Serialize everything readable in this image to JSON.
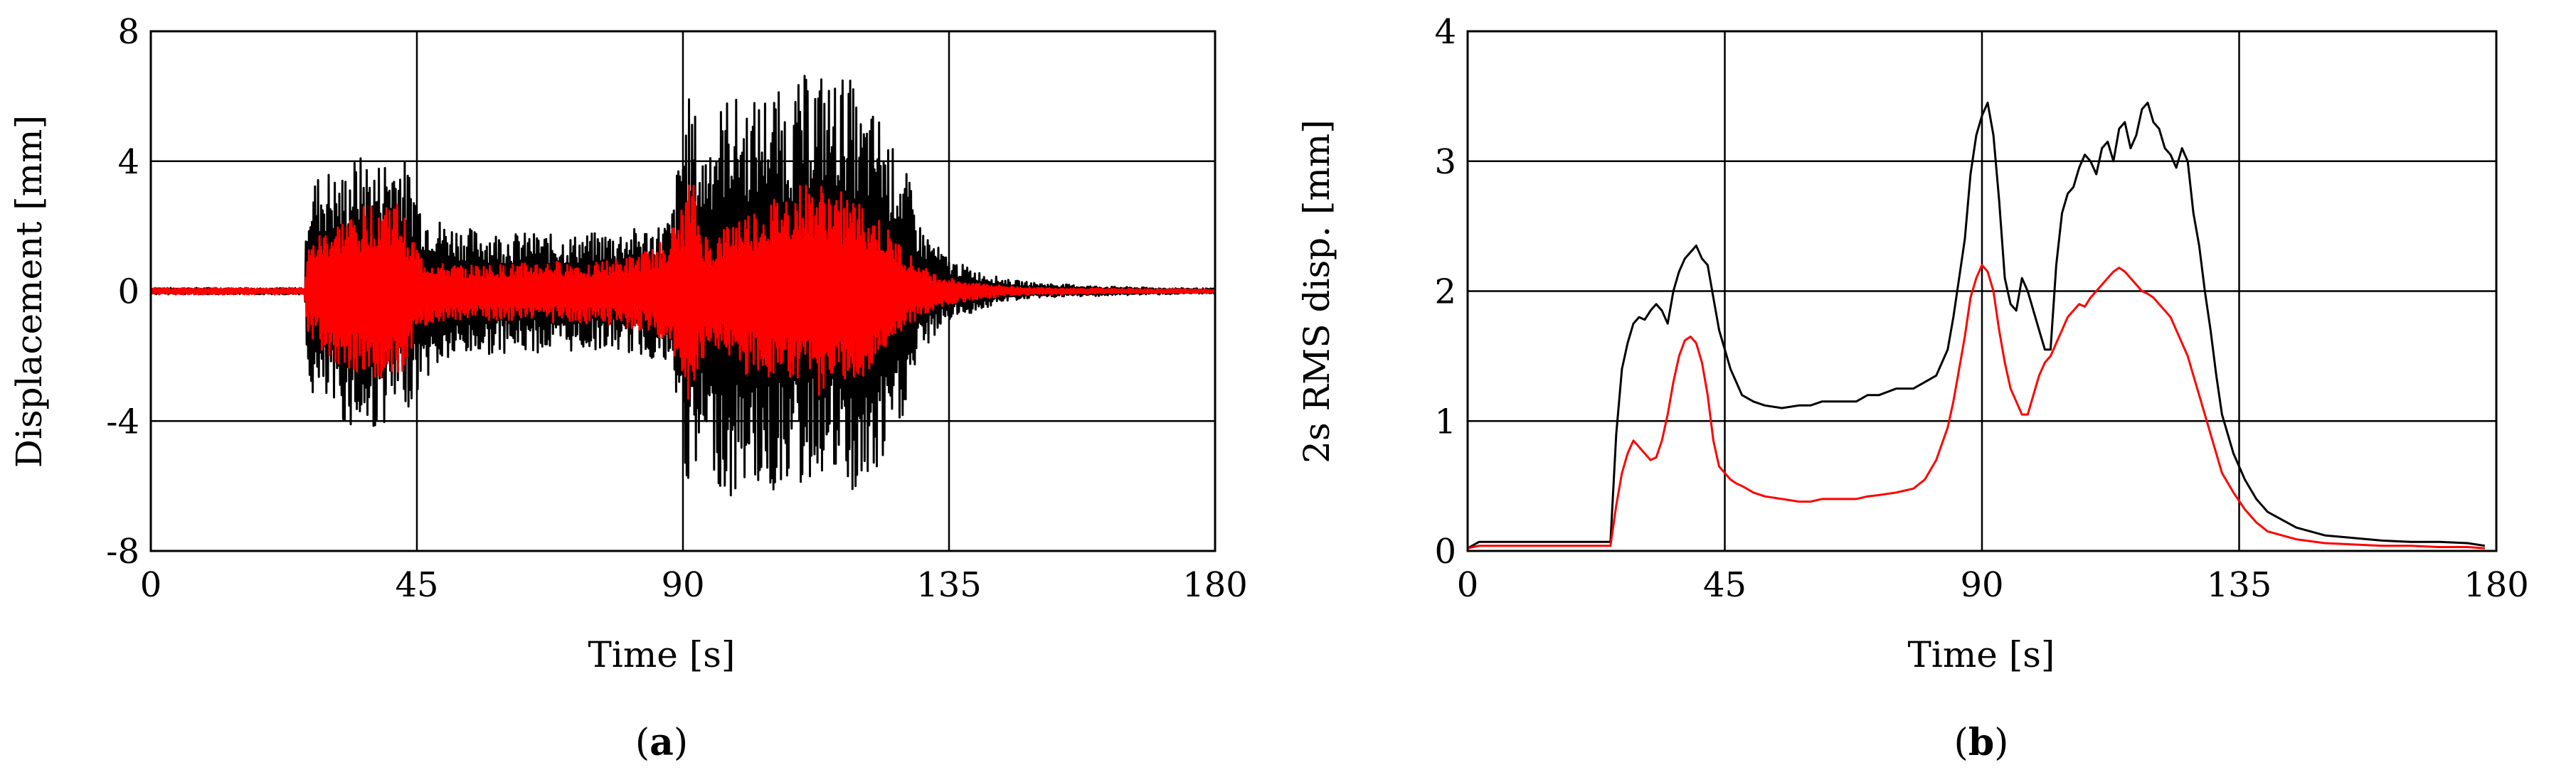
{
  "chart_data": [
    {
      "type": "line",
      "panel_caption": "(a)",
      "panel_letter": "a",
      "xlabel": "Time [s]",
      "ylabel": "Displacement [mm]",
      "xlim": [
        0,
        180
      ],
      "ylim": [
        -8,
        8
      ],
      "x_ticks": [
        0,
        45,
        90,
        135,
        180
      ],
      "y_ticks": [
        -8,
        -4,
        0,
        4,
        8
      ],
      "grid": true,
      "series": [
        {
          "color": "#000000",
          "x": [
            0,
            26,
            26.5,
            28,
            30,
            32,
            34,
            36,
            38,
            40,
            42,
            44,
            46,
            50,
            55,
            60,
            65,
            70,
            75,
            80,
            85,
            88,
            90,
            91,
            92,
            93,
            95,
            98,
            100,
            103,
            105,
            108,
            110,
            113,
            115,
            118,
            120,
            123,
            125,
            128,
            130,
            133,
            135,
            140,
            145,
            150,
            160,
            170,
            180
          ],
          "envelope_pos": [
            0.1,
            0.1,
            3.3,
            3.6,
            3.8,
            3.5,
            4.1,
            4.2,
            3.9,
            4.3,
            4.4,
            3.7,
            2.6,
            2.1,
            1.9,
            1.8,
            1.8,
            1.7,
            1.8,
            1.9,
            2.0,
            2.3,
            5.2,
            6.0,
            5.6,
            4.2,
            5.4,
            6.2,
            5.8,
            6.0,
            6.4,
            5.8,
            6.6,
            6.9,
            6.5,
            6.8,
            5.5,
            5.6,
            4.6,
            3.6,
            2.1,
            1.4,
            1.0,
            0.6,
            0.35,
            0.25,
            0.15,
            0.1,
            0.08
          ],
          "envelope_neg": [
            -0.1,
            -0.1,
            -3.1,
            -3.4,
            -3.7,
            -4.0,
            -4.2,
            -4.5,
            -4.3,
            -4.0,
            -3.8,
            -3.5,
            -2.8,
            -2.2,
            -2.0,
            -1.9,
            -1.9,
            -1.9,
            -1.8,
            -1.9,
            -2.1,
            -2.6,
            -4.8,
            -6.5,
            -6.2,
            -5.2,
            -5.5,
            -6.8,
            -5.9,
            -6.1,
            -6.4,
            -5.7,
            -6.2,
            -5.6,
            -5.8,
            -6.4,
            -6.6,
            -5.9,
            -5.1,
            -3.5,
            -2.0,
            -1.3,
            -0.9,
            -0.6,
            -0.3,
            -0.2,
            -0.15,
            -0.1,
            -0.08
          ]
        },
        {
          "color": "#ff0000",
          "x": [
            0,
            26,
            26.5,
            28,
            30,
            32,
            34,
            36,
            38,
            40,
            42,
            44,
            46,
            50,
            55,
            60,
            65,
            70,
            75,
            80,
            85,
            88,
            90,
            91,
            92,
            93,
            95,
            98,
            100,
            103,
            105,
            108,
            110,
            113,
            115,
            118,
            120,
            123,
            125,
            128,
            130,
            133,
            135,
            140,
            145,
            150,
            160,
            170,
            180
          ],
          "envelope_pos": [
            0.1,
            0.1,
            1.3,
            1.7,
            2.0,
            2.2,
            2.4,
            2.6,
            2.8,
            3.0,
            2.7,
            1.8,
            1.0,
            0.8,
            0.8,
            0.8,
            0.9,
            0.9,
            0.9,
            1.0,
            1.3,
            1.9,
            2.6,
            3.4,
            3.2,
            2.0,
            1.5,
            2.2,
            2.4,
            2.6,
            2.8,
            3.1,
            3.3,
            3.3,
            3.2,
            3.0,
            2.7,
            2.3,
            1.8,
            1.2,
            0.8,
            0.5,
            0.4,
            0.25,
            0.15,
            0.1,
            0.08,
            0.06,
            0.05
          ],
          "envelope_neg": [
            -0.1,
            -0.1,
            -1.3,
            -1.7,
            -2.0,
            -2.3,
            -2.5,
            -2.7,
            -2.9,
            -3.1,
            -2.8,
            -1.9,
            -1.1,
            -0.9,
            -0.9,
            -0.9,
            -0.9,
            -1.0,
            -1.0,
            -1.1,
            -1.4,
            -2.0,
            -2.8,
            -3.6,
            -3.4,
            -2.2,
            -1.7,
            -2.4,
            -2.6,
            -2.7,
            -2.9,
            -3.1,
            -3.3,
            -3.2,
            -3.1,
            -3.0,
            -2.7,
            -2.3,
            -1.8,
            -1.2,
            -0.8,
            -0.5,
            -0.4,
            -0.25,
            -0.15,
            -0.1,
            -0.08,
            -0.06,
            -0.05
          ]
        }
      ]
    },
    {
      "type": "line",
      "panel_caption": "(b)",
      "panel_letter": "b",
      "xlabel": "Time [s]",
      "ylabel": "2s RMS disp. [mm]",
      "xlim": [
        0,
        180
      ],
      "ylim": [
        0,
        4
      ],
      "x_ticks": [
        0,
        45,
        90,
        135,
        180
      ],
      "y_ticks": [
        0,
        1,
        2,
        3,
        4
      ],
      "grid": true,
      "series": [
        {
          "color": "#000000",
          "x": [
            0,
            2,
            4,
            6,
            8,
            10,
            12,
            14,
            16,
            18,
            20,
            22,
            24,
            25,
            26,
            27,
            28,
            29,
            30,
            31,
            32,
            33,
            34,
            35,
            36,
            37,
            38,
            39,
            40,
            41,
            42,
            43,
            44,
            45,
            46,
            47,
            48,
            50,
            52,
            55,
            58,
            60,
            62,
            65,
            68,
            70,
            72,
            75,
            78,
            80,
            82,
            84,
            85,
            86,
            87,
            88,
            89,
            90,
            91,
            92,
            93,
            94,
            95,
            96,
            97,
            98,
            99,
            100,
            101,
            102,
            103,
            104,
            105,
            106,
            107,
            108,
            109,
            110,
            111,
            112,
            113,
            114,
            115,
            116,
            117,
            118,
            119,
            120,
            121,
            122,
            123,
            124,
            125,
            126,
            127,
            128,
            129,
            130,
            131,
            132,
            134,
            136,
            138,
            140,
            145,
            150,
            155,
            160,
            165,
            170,
            175,
            178
          ],
          "y": [
            0.02,
            0.07,
            0.07,
            0.07,
            0.07,
            0.07,
            0.07,
            0.07,
            0.07,
            0.07,
            0.07,
            0.07,
            0.07,
            0.07,
            0.9,
            1.4,
            1.6,
            1.75,
            1.8,
            1.78,
            1.85,
            1.9,
            1.85,
            1.75,
            2.0,
            2.15,
            2.25,
            2.3,
            2.35,
            2.25,
            2.2,
            1.95,
            1.7,
            1.55,
            1.4,
            1.3,
            1.2,
            1.15,
            1.12,
            1.1,
            1.12,
            1.12,
            1.15,
            1.15,
            1.15,
            1.2,
            1.2,
            1.25,
            1.25,
            1.3,
            1.35,
            1.55,
            1.8,
            2.1,
            2.4,
            2.9,
            3.2,
            3.35,
            3.45,
            3.2,
            2.7,
            2.1,
            1.9,
            1.85,
            2.1,
            2.0,
            1.85,
            1.7,
            1.55,
            1.55,
            2.2,
            2.6,
            2.75,
            2.8,
            2.95,
            3.05,
            3.0,
            2.9,
            3.1,
            3.15,
            3.0,
            3.25,
            3.3,
            3.1,
            3.2,
            3.4,
            3.45,
            3.3,
            3.25,
            3.1,
            3.05,
            2.95,
            3.1,
            3.0,
            2.6,
            2.35,
            2.0,
            1.7,
            1.35,
            1.05,
            0.75,
            0.55,
            0.4,
            0.3,
            0.18,
            0.12,
            0.1,
            0.08,
            0.07,
            0.07,
            0.06,
            0.04
          ]
        },
        {
          "color": "#ff0000",
          "x": [
            0,
            2,
            4,
            6,
            8,
            10,
            12,
            14,
            16,
            18,
            20,
            22,
            24,
            25,
            26,
            27,
            28,
            29,
            30,
            31,
            32,
            33,
            34,
            35,
            36,
            37,
            38,
            39,
            40,
            41,
            42,
            43,
            44,
            45,
            46,
            47,
            48,
            50,
            52,
            55,
            58,
            60,
            62,
            65,
            68,
            70,
            72,
            75,
            78,
            80,
            82,
            84,
            85,
            86,
            87,
            88,
            89,
            90,
            91,
            92,
            93,
            94,
            95,
            96,
            97,
            98,
            99,
            100,
            101,
            102,
            103,
            104,
            105,
            106,
            107,
            108,
            109,
            110,
            111,
            112,
            113,
            114,
            115,
            116,
            117,
            118,
            119,
            120,
            121,
            122,
            123,
            124,
            125,
            126,
            127,
            128,
            129,
            130,
            131,
            132,
            134,
            136,
            138,
            140,
            145,
            150,
            155,
            160,
            165,
            170,
            175,
            178
          ],
          "y": [
            0.02,
            0.04,
            0.04,
            0.04,
            0.04,
            0.04,
            0.04,
            0.04,
            0.04,
            0.04,
            0.04,
            0.04,
            0.04,
            0.04,
            0.35,
            0.6,
            0.75,
            0.85,
            0.8,
            0.75,
            0.7,
            0.72,
            0.85,
            1.05,
            1.3,
            1.5,
            1.62,
            1.65,
            1.6,
            1.45,
            1.2,
            0.85,
            0.65,
            0.6,
            0.55,
            0.52,
            0.5,
            0.45,
            0.42,
            0.4,
            0.38,
            0.38,
            0.4,
            0.4,
            0.4,
            0.42,
            0.43,
            0.45,
            0.48,
            0.55,
            0.7,
            0.95,
            1.15,
            1.4,
            1.65,
            1.95,
            2.1,
            2.2,
            2.15,
            2.0,
            1.7,
            1.45,
            1.25,
            1.15,
            1.05,
            1.05,
            1.2,
            1.35,
            1.45,
            1.5,
            1.6,
            1.7,
            1.8,
            1.85,
            1.9,
            1.88,
            1.95,
            2.0,
            2.05,
            2.1,
            2.15,
            2.18,
            2.15,
            2.1,
            2.05,
            2.0,
            1.98,
            1.95,
            1.9,
            1.85,
            1.8,
            1.7,
            1.6,
            1.5,
            1.35,
            1.2,
            1.05,
            0.9,
            0.75,
            0.6,
            0.45,
            0.32,
            0.22,
            0.15,
            0.09,
            0.06,
            0.05,
            0.04,
            0.04,
            0.03,
            0.03,
            0.02
          ]
        }
      ]
    }
  ]
}
